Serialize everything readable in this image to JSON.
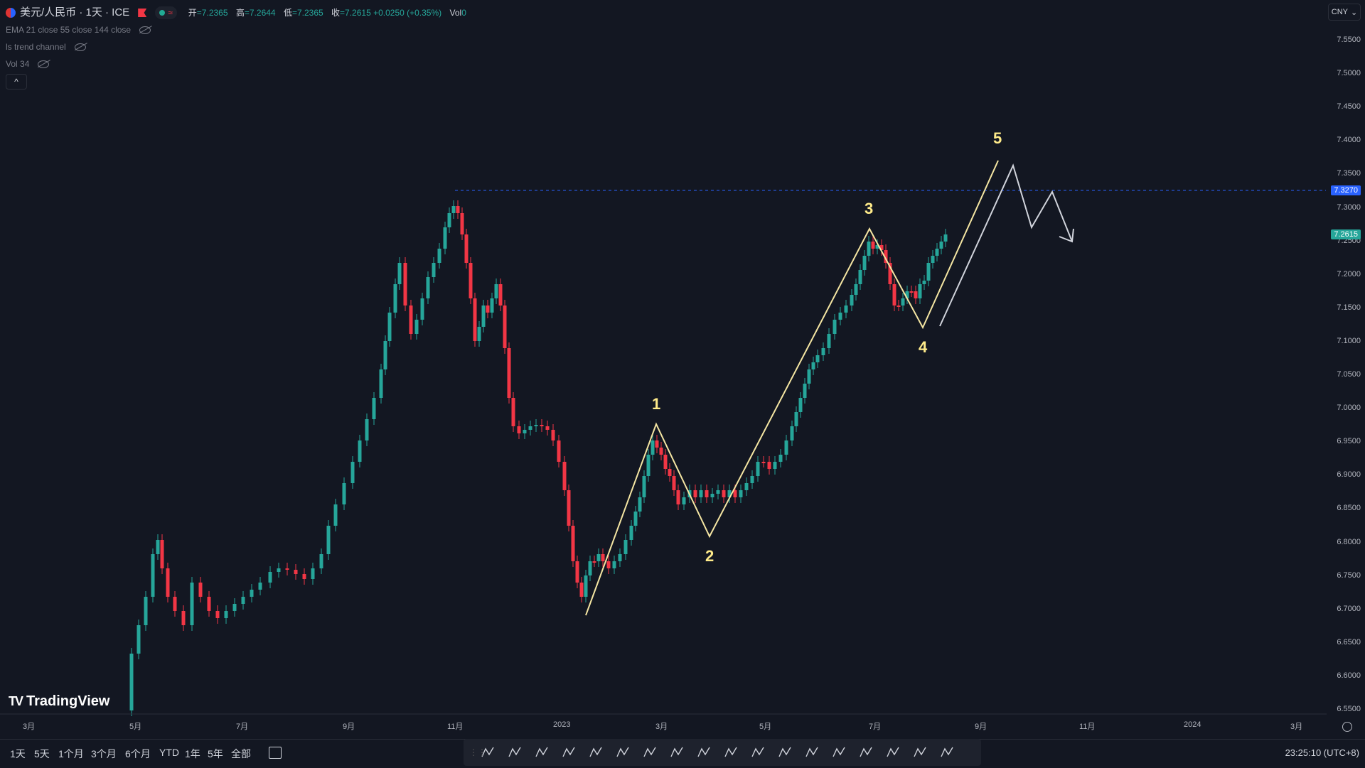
{
  "symbol": {
    "title": "美元/人民币 · 1天 · ICE",
    "ohlc": [
      {
        "k": "开",
        "v": "=7.2365"
      },
      {
        "k": "高",
        "v": "=7.2644"
      },
      {
        "k": "低",
        "v": "=7.2365"
      },
      {
        "k": "收",
        "v": "=7.2615 +0.0250 (+0.35%)"
      },
      {
        "k": "Vol",
        "v": "0"
      }
    ]
  },
  "indicators": [
    "EMA 21 close 55 close 144 close",
    "ls trend channel",
    "Vol 34"
  ],
  "currency": "CNY",
  "y_axis": [
    "7.5500",
    "7.5000",
    "7.4500",
    "7.4000",
    "7.3500",
    "7.3000",
    "7.2500",
    "7.2000",
    "7.1500",
    "7.1000",
    "7.0500",
    "7.0000",
    "6.9500",
    "6.9000",
    "6.8500",
    "6.8000",
    "6.7500",
    "6.7000",
    "6.6500",
    "6.6000",
    "6.5500"
  ],
  "x_axis": [
    "3月",
    "5月",
    "7月",
    "9月",
    "11月",
    "2023",
    "3月",
    "5月",
    "7月",
    "9月",
    "11月",
    "2024",
    "3月"
  ],
  "price_tags": {
    "dashed": "7.3270",
    "last": "7.2615"
  },
  "wave_labels": [
    "1",
    "2",
    "3",
    "4",
    "5"
  ],
  "branding": "TradingView",
  "ranges": [
    "1天",
    "5天",
    "1个月",
    "3个月",
    "6个月",
    "YTD",
    "1年",
    "5年",
    "全部"
  ],
  "clock": "23:25:10 (UTC+8)",
  "colors": {
    "up": "#26a69a",
    "down": "#f23645",
    "wave": "#f5e6a3",
    "projection": "#d1d4dc",
    "dashed": "#2962ff"
  },
  "tools": [
    "xabcd-icon",
    "cypher-icon",
    "abcd-icon",
    "triangle-pattern-icon",
    "three-drives-icon",
    "elliott-impulse-icon",
    "elliott-correction-icon",
    "elliott-triangle-icon",
    "elliott-double-combo-icon",
    "elliott-triple-combo-icon",
    "cycle-lines-icon",
    "time-cycles-icon",
    "sine-line-icon",
    "long-position-icon",
    "short-position-icon",
    "forecast-icon",
    "bars-pattern-icon",
    "ghost-feed-icon",
    "projection-icon",
    "price-range-icon",
    "date-range-icon"
  ]
}
